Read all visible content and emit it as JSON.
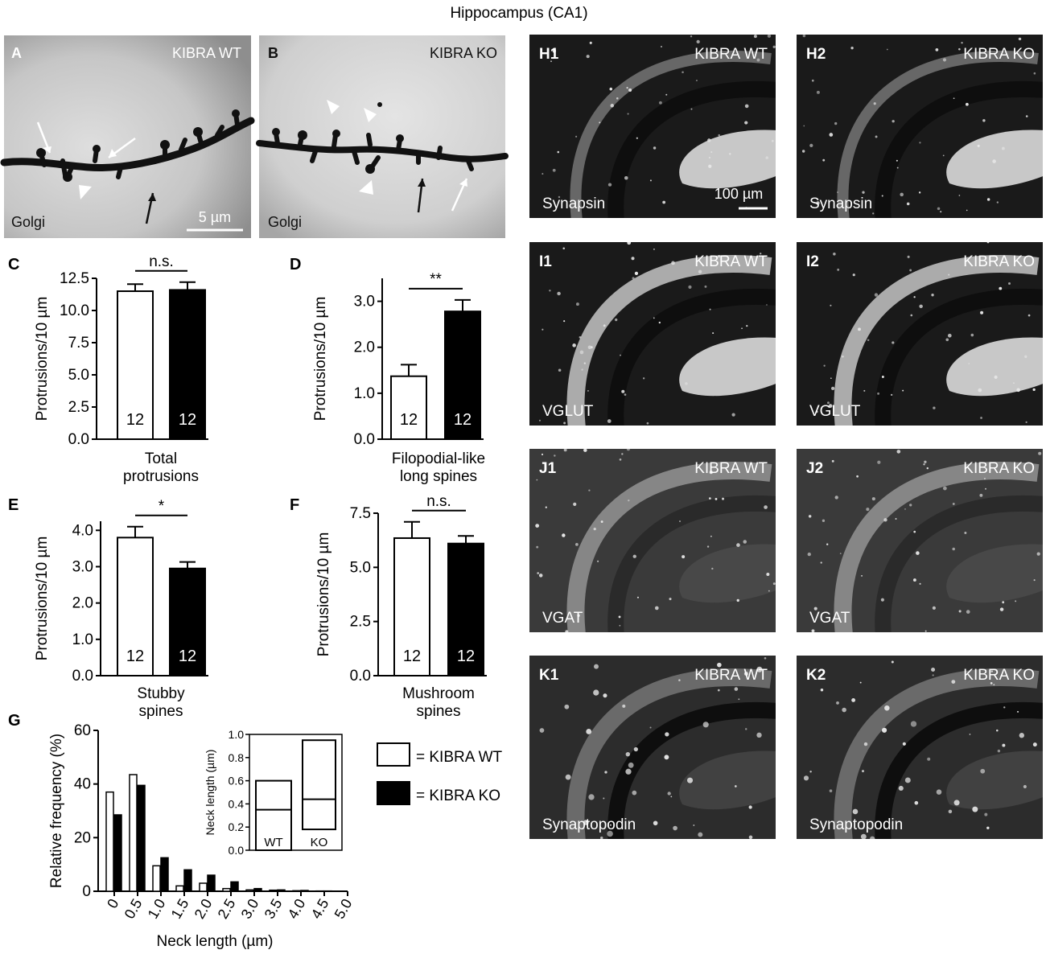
{
  "figure": {
    "title": "Hippocampus (CA1)",
    "golgi_panels": [
      {
        "letter": "A",
        "genotype": "KIBRA WT",
        "stain": "Golgi",
        "scale": "5 µm"
      },
      {
        "letter": "B",
        "genotype": "KIBRA KO",
        "stain": "Golgi"
      }
    ],
    "micrographs": [
      {
        "letter": "H1",
        "genotype": "KIBRA WT",
        "stain": "Synapsin",
        "scale": "100 µm"
      },
      {
        "letter": "H2",
        "genotype": "KIBRA KO",
        "stain": "Synapsin"
      },
      {
        "letter": "I1",
        "genotype": "KIBRA WT",
        "stain": "VGLUT"
      },
      {
        "letter": "I2",
        "genotype": "KIBRA KO",
        "stain": "VGLUT"
      },
      {
        "letter": "J1",
        "genotype": "KIBRA WT",
        "stain": "VGAT"
      },
      {
        "letter": "J2",
        "genotype": "KIBRA KO",
        "stain": "VGAT"
      },
      {
        "letter": "K1",
        "genotype": "KIBRA WT",
        "stain": "Synaptopodin"
      },
      {
        "letter": "K2",
        "genotype": "KIBRA KO",
        "stain": "Synaptopodin"
      }
    ],
    "legend": [
      {
        "label": "= KIBRA WT",
        "color": "#ffffff"
      },
      {
        "label": "= KIBRA KO",
        "color": "#000000"
      }
    ],
    "colors": {
      "wt": "#ffffff",
      "ko": "#000000"
    }
  },
  "chart_data": [
    {
      "panel": "C",
      "type": "bar",
      "categories": [
        "KIBRA WT",
        "KIBRA KO"
      ],
      "values": [
        11.5,
        11.6
      ],
      "errors": [
        0.55,
        0.6
      ],
      "n": [
        "12",
        "12"
      ],
      "significance": "n.s.",
      "ylabel": "Protrusions/10 µm",
      "xlabel": [
        "Total",
        "protrusions"
      ],
      "ylim": [
        0,
        12.5
      ],
      "yticks": [
        0,
        2.5,
        5,
        7.5,
        10,
        12.5
      ],
      "yticklabels": [
        "0.0",
        "2.5",
        "5.0",
        "7.5",
        "10.0",
        "12.5"
      ]
    },
    {
      "panel": "D",
      "type": "bar",
      "categories": [
        "KIBRA WT",
        "KIBRA KO"
      ],
      "values": [
        1.37,
        2.78
      ],
      "errors": [
        0.25,
        0.25
      ],
      "n": [
        "12",
        "12"
      ],
      "significance": "**",
      "ylabel": "Protrusions/10 µm",
      "xlabel": [
        "Filopodial-like",
        "long spines"
      ],
      "ylim": [
        0,
        3.5
      ],
      "yticks": [
        0,
        1,
        2,
        3
      ],
      "yticklabels": [
        "0.0",
        "1.0",
        "2.0",
        "3.0"
      ]
    },
    {
      "panel": "E",
      "type": "bar",
      "categories": [
        "KIBRA WT",
        "KIBRA KO"
      ],
      "values": [
        3.8,
        2.95
      ],
      "errors": [
        0.3,
        0.18
      ],
      "n": [
        "12",
        "12"
      ],
      "significance": "*",
      "ylabel": "Protrusions/10 µm",
      "xlabel": [
        "Stubby",
        "spines"
      ],
      "ylim": [
        0,
        4.25
      ],
      "yticks": [
        0,
        1,
        2,
        3,
        4
      ],
      "yticklabels": [
        "0.0",
        "1.0",
        "2.0",
        "3.0",
        "4.0"
      ]
    },
    {
      "panel": "F",
      "type": "bar",
      "categories": [
        "KIBRA WT",
        "KIBRA KO"
      ],
      "values": [
        6.35,
        6.1
      ],
      "errors": [
        0.75,
        0.35
      ],
      "n": [
        "12",
        "12"
      ],
      "significance": "n.s.",
      "ylabel": "Protrusions/10 µm",
      "xlabel": [
        "Mushroom",
        "spines"
      ],
      "ylim": [
        0,
        7.5
      ],
      "yticks": [
        0,
        2.5,
        5,
        7.5
      ],
      "yticklabels": [
        "0.0",
        "2.5",
        "5.0",
        "7.5"
      ]
    },
    {
      "panel": "G",
      "type": "bar",
      "categories": [
        "0",
        "0.5",
        "1.0",
        "1.5",
        "2.0",
        "2.5",
        "3.0",
        "3.5",
        "4.0",
        "4.5",
        "5.0"
      ],
      "series": [
        {
          "name": "KIBRA WT",
          "values": [
            37,
            43.5,
            9.5,
            2,
            3,
            1,
            0.5,
            0.4,
            0.2,
            0.1,
            0
          ]
        },
        {
          "name": "KIBRA KO",
          "values": [
            28.5,
            39.5,
            12.5,
            8,
            6,
            3.5,
            1,
            0.5,
            0.3,
            0.1,
            0
          ]
        }
      ],
      "ylabel": "Relative frequency (%)",
      "xlabel": "Neck length (µm)",
      "ylim": [
        0,
        60
      ],
      "yticks": [
        0,
        20,
        40,
        60
      ],
      "yticklabels": [
        "0",
        "20",
        "40",
        "60"
      ],
      "inset": {
        "type": "box",
        "categories": [
          "WT",
          "KO"
        ],
        "boxes": [
          {
            "low": 0,
            "median": 0.35,
            "high": 0.6
          },
          {
            "low": 0.18,
            "median": 0.44,
            "high": 0.95
          }
        ],
        "ylabel": "Neck length (µm)",
        "ylim": [
          0,
          1.0
        ],
        "yticks": [
          0,
          0.2,
          0.4,
          0.6,
          0.8,
          1.0
        ],
        "yticklabels": [
          "0.0",
          "0.2",
          "0.4",
          "0.6",
          "0.8",
          "1.0"
        ]
      }
    }
  ]
}
